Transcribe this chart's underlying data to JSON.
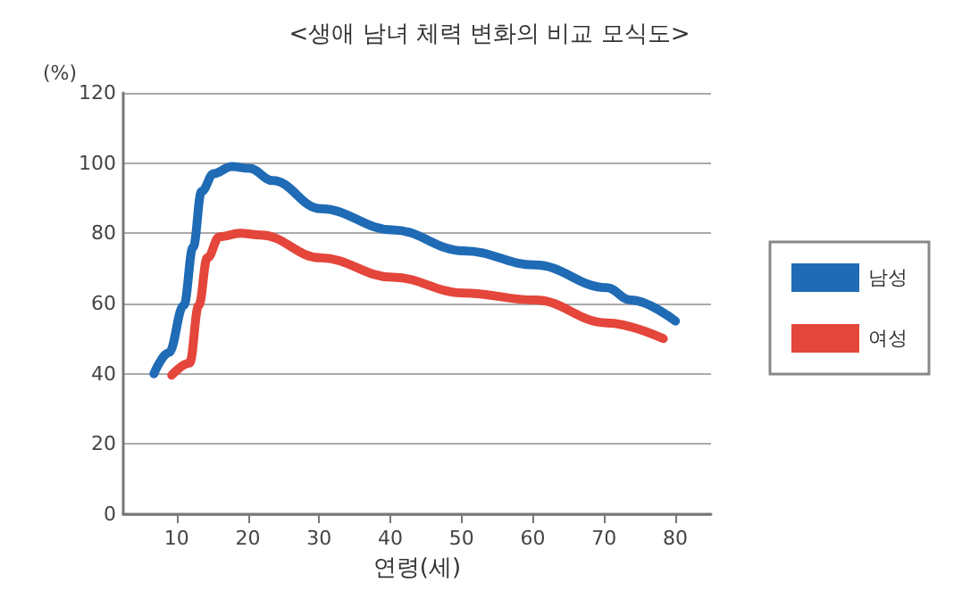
{
  "chart_data": {
    "type": "line",
    "title": "<생애 남녀 체력 변화의 비교 모식도>",
    "xlabel": "연령(세)",
    "ylabel": "(%)",
    "xlim": [
      2.5,
      85
    ],
    "xticks": [
      10,
      20,
      30,
      40,
      50,
      60,
      70,
      80
    ],
    "ylim": [
      0,
      120
    ],
    "yticks": [
      0,
      20,
      40,
      60,
      80,
      100,
      120
    ],
    "grid": "y",
    "legend": "right",
    "marker": "none",
    "line_style": "solid",
    "series": [
      {
        "name": "남성",
        "color": "#1f6bb5",
        "x": [
          6.8,
          8.9,
          11,
          12.3,
          13.5,
          15.2,
          17.7,
          20.2,
          23.5,
          30.2,
          40.3,
          50.3,
          60.3,
          70.4,
          73.7,
          80
        ],
        "values": [
          40,
          46,
          59.5,
          76,
          92,
          97,
          99,
          98.5,
          95,
          87,
          81,
          75,
          71,
          64.5,
          61,
          55
        ]
      },
      {
        "name": "여성",
        "color": "#e4463b",
        "x": [
          9.3,
          11.8,
          13.1,
          14.3,
          16,
          18.9,
          21.8,
          30.2,
          40.3,
          50.3,
          60.3,
          70.4,
          78.3
        ],
        "values": [
          39.6,
          43,
          59.5,
          73,
          79,
          80,
          79.5,
          73,
          67.5,
          63,
          61,
          54.5,
          50
        ]
      }
    ]
  }
}
